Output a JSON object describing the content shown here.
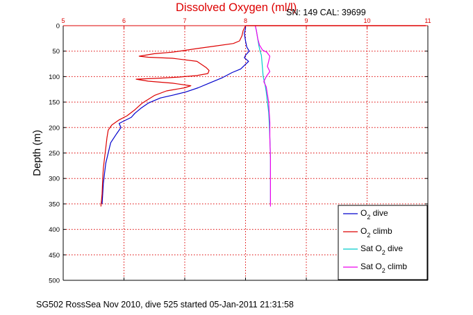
{
  "chart_data": {
    "type": "line",
    "title": "Dissolved Oxygen (ml/l)",
    "annotation": "SN: 149  CAL: 39699",
    "xlabel": "",
    "ylabel": "Depth (m)",
    "footer": "SG502 RossSea Nov 2010, dive 525 started 05-Jan-2011 21:31:58",
    "xlim": [
      5,
      11
    ],
    "ylim": [
      0,
      500
    ],
    "y_reversed": true,
    "x_axis_position": "top",
    "grid": true,
    "x_ticks": [
      "5",
      "6",
      "7",
      "8",
      "9",
      "10",
      "11"
    ],
    "y_ticks": [
      "0",
      "50",
      "100",
      "150",
      "200",
      "250",
      "300",
      "350",
      "400",
      "450",
      "500"
    ],
    "legend_position": "bottom-right",
    "series": [
      {
        "label": "O2 dive",
        "legend_main": "O",
        "legend_sub": "2",
        "legend_rest": " dive",
        "color": "#0000cc",
        "points": [
          [
            8.0,
            0
          ],
          [
            8.0,
            5
          ],
          [
            7.98,
            15
          ],
          [
            8.0,
            30
          ],
          [
            8.02,
            42
          ],
          [
            8.06,
            50
          ],
          [
            8.0,
            58
          ],
          [
            7.98,
            63
          ],
          [
            8.05,
            70
          ],
          [
            7.98,
            78
          ],
          [
            7.92,
            85
          ],
          [
            7.78,
            92
          ],
          [
            7.62,
            102
          ],
          [
            7.42,
            112
          ],
          [
            7.22,
            122
          ],
          [
            7.02,
            130
          ],
          [
            6.82,
            136
          ],
          [
            6.6,
            142
          ],
          [
            6.4,
            152
          ],
          [
            6.28,
            162
          ],
          [
            6.18,
            172
          ],
          [
            6.12,
            180
          ],
          [
            6.02,
            186
          ],
          [
            5.92,
            192
          ],
          [
            5.95,
            200
          ],
          [
            5.88,
            212
          ],
          [
            5.78,
            230
          ],
          [
            5.74,
            250
          ],
          [
            5.7,
            270
          ],
          [
            5.68,
            290
          ],
          [
            5.66,
            310
          ],
          [
            5.65,
            330
          ],
          [
            5.64,
            350
          ]
        ]
      },
      {
        "label": "O2 climb",
        "legend_main": "O",
        "legend_sub": "2",
        "legend_rest": " climb",
        "color": "#dd0000",
        "points": [
          [
            8.0,
            0
          ],
          [
            7.96,
            10
          ],
          [
            7.94,
            20
          ],
          [
            7.9,
            30
          ],
          [
            7.8,
            35
          ],
          [
            7.5,
            40
          ],
          [
            7.2,
            45
          ],
          [
            6.8,
            52
          ],
          [
            6.5,
            55
          ],
          [
            6.25,
            60
          ],
          [
            6.4,
            62
          ],
          [
            6.8,
            64
          ],
          [
            7.2,
            70
          ],
          [
            7.35,
            82
          ],
          [
            7.4,
            88
          ],
          [
            7.38,
            94
          ],
          [
            7.2,
            98
          ],
          [
            6.9,
            101
          ],
          [
            6.6,
            103
          ],
          [
            6.2,
            105
          ],
          [
            6.4,
            109
          ],
          [
            6.8,
            113
          ],
          [
            7.1,
            118
          ],
          [
            7.0,
            122
          ],
          [
            6.7,
            128
          ],
          [
            6.5,
            137
          ],
          [
            6.3,
            152
          ],
          [
            6.18,
            165
          ],
          [
            6.05,
            177
          ],
          [
            5.92,
            185
          ],
          [
            5.8,
            195
          ],
          [
            5.74,
            205
          ],
          [
            5.72,
            220
          ],
          [
            5.7,
            240
          ],
          [
            5.68,
            260
          ],
          [
            5.66,
            280
          ],
          [
            5.65,
            300
          ],
          [
            5.64,
            330
          ],
          [
            5.62,
            355
          ]
        ]
      },
      {
        "label": "Sat O2 dive",
        "legend_main": "Sat O",
        "legend_sub": "2",
        "legend_rest": " dive",
        "color": "#00cccc",
        "points": [
          [
            8.16,
            0
          ],
          [
            8.18,
            10
          ],
          [
            8.2,
            25
          ],
          [
            8.22,
            40
          ],
          [
            8.24,
            50
          ],
          [
            8.26,
            58
          ],
          [
            8.27,
            70
          ],
          [
            8.28,
            85
          ],
          [
            8.29,
            100
          ],
          [
            8.32,
            115
          ],
          [
            8.34,
            130
          ],
          [
            8.36,
            150
          ],
          [
            8.38,
            170
          ],
          [
            8.39,
            190
          ],
          [
            8.4,
            220
          ],
          [
            8.41,
            260
          ],
          [
            8.41,
            300
          ],
          [
            8.41,
            350
          ]
        ]
      },
      {
        "label": "Sat O2 climb",
        "legend_main": "Sat O",
        "legend_sub": "2",
        "legend_rest": " climb",
        "color": "#ee00ee",
        "points": [
          [
            8.16,
            0
          ],
          [
            8.18,
            10
          ],
          [
            8.2,
            25
          ],
          [
            8.23,
            38
          ],
          [
            8.28,
            48
          ],
          [
            8.35,
            52
          ],
          [
            8.4,
            60
          ],
          [
            8.38,
            70
          ],
          [
            8.36,
            80
          ],
          [
            8.4,
            90
          ],
          [
            8.34,
            100
          ],
          [
            8.3,
            110
          ],
          [
            8.34,
            120
          ],
          [
            8.36,
            135
          ],
          [
            8.38,
            150
          ],
          [
            8.39,
            170
          ],
          [
            8.4,
            190
          ],
          [
            8.4,
            220
          ],
          [
            8.41,
            260
          ],
          [
            8.41,
            300
          ],
          [
            8.41,
            355
          ]
        ]
      }
    ]
  }
}
